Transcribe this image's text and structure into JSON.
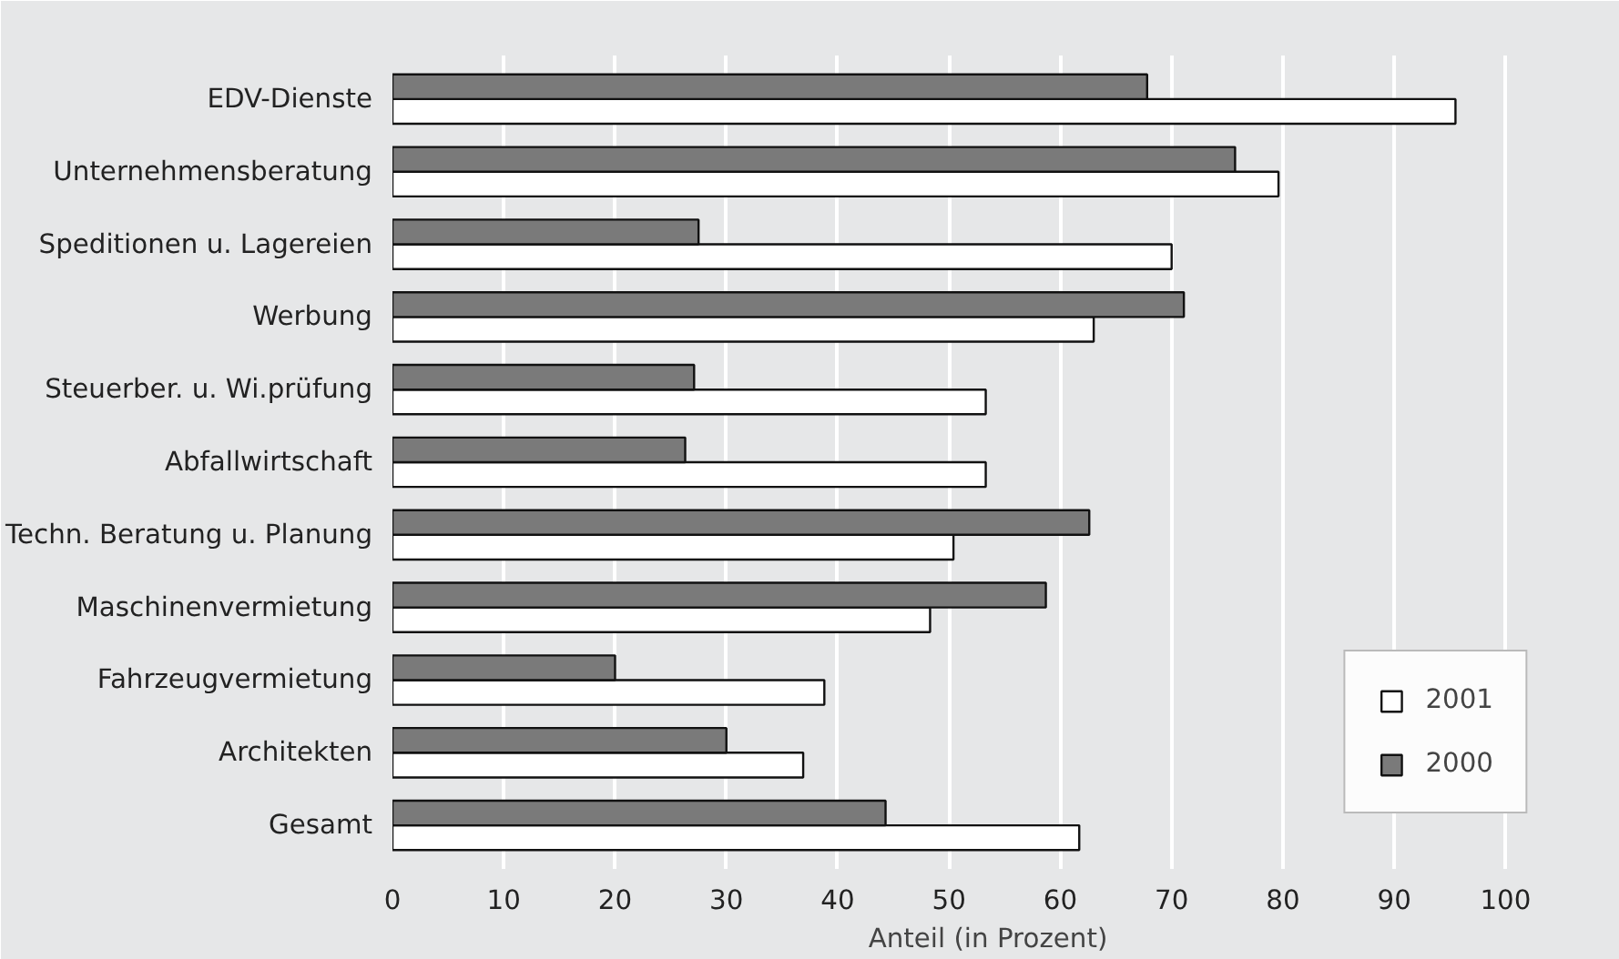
{
  "chart_data": {
    "type": "bar",
    "orientation": "horizontal",
    "xlabel": "Anteil (in Prozent)",
    "categories": [
      "EDV-Dienste",
      "Unternehmensberatung",
      "Speditionen u. Lagereien",
      "Werbung",
      "Steuerber. u. Wi.prüfung",
      "Abfallwirtschaft",
      "Techn. Beratung u. Planung",
      "Maschinenvermietung",
      "Fahrzeugvermietung",
      "Architekten",
      "Gesamt"
    ],
    "series": [
      {
        "name": "2001",
        "color": "#ffffff",
        "values": [
          95.5,
          79.6,
          70,
          63,
          53.3,
          53.3,
          50.4,
          48.3,
          38.8,
          36.9,
          61.7
        ]
      },
      {
        "name": "2000",
        "color": "#7a7a7a",
        "values": [
          67.8,
          75.7,
          27.5,
          71.1,
          27.1,
          26.3,
          62.6,
          58.7,
          20,
          30,
          44.3
        ]
      }
    ],
    "xlim": [
      0,
      100
    ],
    "xticks": [
      0,
      10,
      20,
      30,
      40,
      50,
      60,
      70,
      80,
      90,
      100
    ],
    "grid": "x",
    "legend": "bottom right"
  }
}
